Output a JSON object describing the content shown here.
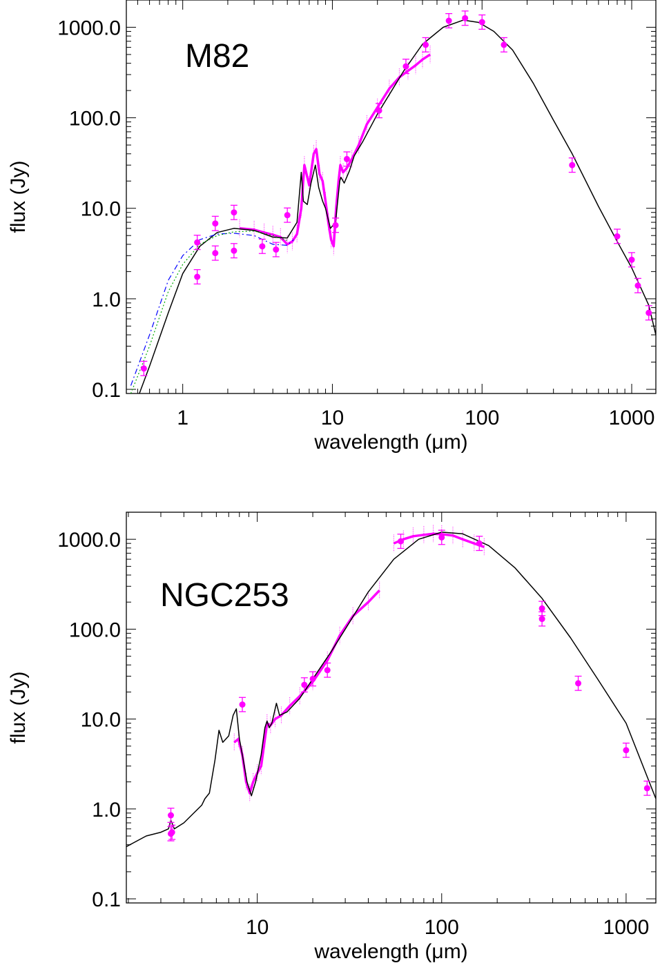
{
  "chart_data": [
    {
      "type": "scatter",
      "title": "M82",
      "xlabel": "wavelength (μm)",
      "ylabel": "flux (Jy)",
      "xscale": "log",
      "yscale": "log",
      "xlim": [
        0.42,
        1450
      ],
      "ylim": [
        0.09,
        2000
      ],
      "xticks": [
        1,
        10,
        100,
        1000
      ],
      "xtick_labels": [
        "1",
        "10",
        "100",
        "1000"
      ],
      "yticks": [
        0.1,
        1,
        10,
        100,
        1000
      ],
      "ytick_labels": [
        "0.1",
        "1.0",
        "10.0",
        "100.0",
        "1000.0"
      ],
      "colors": {
        "observed": "#ff00ff",
        "model": "#000000",
        "model_alt1": "#0000ff",
        "model_alt2": "#00aa00"
      },
      "series": [
        {
          "style": "points_with_errorbars",
          "x": [
            0.55,
            1.25,
            1.25,
            1.65,
            1.65,
            2.2,
            2.2,
            3.4,
            4.2,
            5.0,
            10.5,
            12.5,
            20.5,
            31,
            42,
            60,
            77,
            100,
            140,
            400,
            800,
            1000,
            1100,
            1300
          ],
          "y": [
            0.17,
            1.75,
            4.2,
            3.2,
            6.8,
            3.4,
            9.0,
            3.8,
            3.5,
            8.4,
            6.5,
            35,
            120,
            370,
            640,
            1180,
            1260,
            1140,
            640,
            30,
            4.9,
            2.7,
            1.4,
            0.7
          ]
        },
        {
          "style": "spectrum",
          "x": [
            2.4,
            3.0,
            3.5,
            4.0,
            4.5,
            5.0,
            5.4,
            5.8,
            6.2,
            6.5,
            7.0,
            7.5,
            7.8,
            8.2,
            8.6,
            9.0,
            9.4,
            9.8,
            10.2,
            10.6,
            11.0,
            11.3,
            11.8,
            12.5,
            13.5,
            15,
            17,
            20,
            24,
            28,
            32,
            36,
            40,
            45
          ],
          "y": [
            6.0,
            5.8,
            5.4,
            5.1,
            4.8,
            4.0,
            4.3,
            5.2,
            10,
            30,
            18,
            40,
            45,
            24,
            20,
            12,
            7,
            4.5,
            3.8,
            10,
            20,
            30,
            25,
            28,
            35,
            50,
            85,
            130,
            210,
            280,
            330,
            380,
            440,
            500
          ]
        },
        {
          "style": "model_line",
          "x": [
            0.5,
            0.6,
            0.8,
            1.0,
            1.3,
            1.7,
            2.2,
            3.0,
            4.0,
            5.0,
            5.8,
            6.2,
            6.4,
            6.8,
            7.2,
            7.7,
            8.1,
            8.6,
            9.0,
            9.7,
            10.5,
            11.2,
            11.4,
            12.0,
            13.0,
            14.0,
            16,
            20,
            30,
            40,
            55,
            75,
            95,
            120,
            160,
            220,
            300,
            400,
            600,
            800,
            1000,
            1300,
            1450
          ],
          "y": [
            0.08,
            0.18,
            0.7,
            1.9,
            3.8,
            5.4,
            6.0,
            5.7,
            4.8,
            4.7,
            7.0,
            25,
            12,
            11,
            19,
            30,
            17,
            12,
            10,
            6.0,
            7.0,
            20,
            22,
            19,
            26,
            38,
            55,
            110,
            330,
            650,
            1000,
            1200,
            1130,
            900,
            560,
            240,
            94,
            40,
            10.5,
            4.3,
            2.2,
            0.85,
            0.4
          ]
        },
        {
          "style": "model_dashed",
          "x": [
            0.45,
            0.6,
            0.8,
            1.0,
            1.3,
            1.7,
            2.2,
            3.0,
            4.0,
            5.0,
            5.5
          ],
          "y": [
            0.11,
            0.4,
            1.6,
            3.0,
            4.5,
            5.2,
            5.3,
            5.0,
            4.0,
            3.9,
            4.5
          ]
        },
        {
          "style": "model_dotted",
          "x": [
            0.45,
            0.6,
            0.8,
            1.0,
            1.3,
            1.7,
            2.2,
            3.0,
            4.0,
            5.0
          ],
          "y": [
            0.09,
            0.3,
            1.2,
            2.4,
            4.0,
            5.0,
            5.5,
            5.6,
            5.0,
            4.4
          ]
        }
      ]
    },
    {
      "type": "scatter",
      "title": "NGC253",
      "xlabel": "wavelength (μm)",
      "ylabel": "flux (Jy)",
      "xscale": "log",
      "yscale": "log",
      "xlim": [
        1.95,
        1450
      ],
      "ylim": [
        0.09,
        2000
      ],
      "xticks": [
        10,
        100,
        1000
      ],
      "xtick_labels": [
        "10",
        "100",
        "1000"
      ],
      "yticks": [
        0.1,
        1,
        10,
        100,
        1000
      ],
      "ytick_labels": [
        "0.1",
        "1.0",
        "10.0",
        "100.0",
        "1000.0"
      ],
      "colors": {
        "observed": "#ff00ff",
        "model": "#000000"
      },
      "series": [
        {
          "style": "points_with_errorbars",
          "x": [
            3.4,
            3.4,
            3.45,
            8.3,
            18,
            20,
            24,
            60,
            100,
            160,
            350,
            350,
            550,
            1000,
            1300
          ],
          "y": [
            0.85,
            0.53,
            0.55,
            14.5,
            24,
            28,
            35,
            950,
            1050,
            900,
            170,
            130,
            25,
            4.5,
            1.7
          ]
        },
        {
          "style": "spectrum",
          "x": [
            7.5,
            7.9,
            8.3,
            8.7,
            9.1,
            9.5,
            10.0,
            10.5,
            11.0,
            11.3,
            11.8,
            12.5,
            13.5,
            15,
            17,
            20,
            24,
            28,
            33,
            40,
            46
          ],
          "y": [
            5.5,
            6.0,
            4.0,
            2.0,
            1.5,
            2.0,
            2.5,
            3.0,
            6.0,
            9.0,
            8.5,
            10,
            11,
            14,
            18,
            26,
            45,
            85,
            140,
            200,
            270
          ]
        },
        {
          "style": "spectrum",
          "x": [
            55,
            62,
            70,
            80,
            90,
            100,
            115,
            130,
            150,
            170
          ],
          "y": [
            900,
            1000,
            1080,
            1120,
            1150,
            1140,
            1100,
            1000,
            900,
            820
          ]
        },
        {
          "style": "model_line",
          "x": [
            1.95,
            2.5,
            3.0,
            3.3,
            3.4,
            3.55,
            4.0,
            5.0,
            5.2,
            5.5,
            5.9,
            6.2,
            6.5,
            7.0,
            7.4,
            7.7,
            8.0,
            8.4,
            8.8,
            9.3,
            9.8,
            10.5,
            11.0,
            11.3,
            11.6,
            12.0,
            12.7,
            13.2,
            14.5,
            17,
            20,
            25,
            30,
            40,
            55,
            75,
            100,
            130,
            180,
            250,
            350,
            500,
            700,
            1000,
            1450
          ],
          "y": [
            0.38,
            0.5,
            0.55,
            0.6,
            0.75,
            0.6,
            0.7,
            1.1,
            1.3,
            1.5,
            3.5,
            7.5,
            5.5,
            6.5,
            11,
            13,
            6,
            3.5,
            2.0,
            1.4,
            2.0,
            4.0,
            8.0,
            9.5,
            8.0,
            9.0,
            15,
            11,
            12,
            17,
            28,
            55,
            100,
            260,
            600,
            1000,
            1200,
            1150,
            850,
            480,
            220,
            80,
            28,
            9.0,
            1.3
          ]
        }
      ]
    }
  ]
}
